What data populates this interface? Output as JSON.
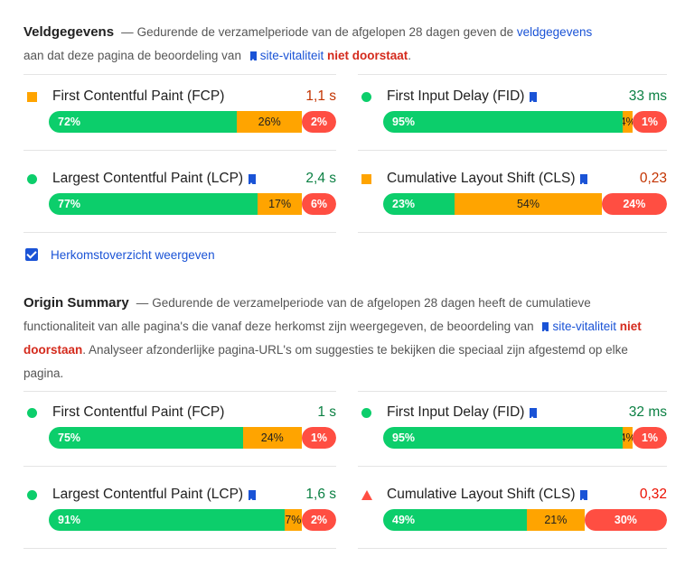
{
  "field": {
    "heading": "Veldgegevens",
    "dash": "—",
    "text1": "Gedurende de verzamelperiode van de afgelopen 28 dagen geven de ",
    "link1": "veldgegevens",
    "text2": "aan dat deze pagina de beoordeling van ",
    "link2": "site-vitaliteit",
    "fail": "niet doorstaat",
    "end": ".",
    "metrics": [
      {
        "label": "First Contentful Paint (FCP)",
        "bookmark": false,
        "value": "1,1 s",
        "status": "orange",
        "good": 72,
        "avg": 26,
        "poor": 2,
        "good_label": "72%",
        "avg_label": "26%",
        "poor_label": "2%"
      },
      {
        "label": "First Input Delay (FID)",
        "bookmark": true,
        "value": "33 ms",
        "status": "green",
        "good": 95,
        "avg": 4,
        "poor": 1,
        "good_label": "95%",
        "avg_label": "4%",
        "poor_label": "1%"
      },
      {
        "label": "Largest Contentful Paint (LCP)",
        "bookmark": true,
        "value": "2,4 s",
        "status": "green",
        "good": 77,
        "avg": 17,
        "poor": 6,
        "good_label": "77%",
        "avg_label": "17%",
        "poor_label": "6%"
      },
      {
        "label": "Cumulative Layout Shift (CLS)",
        "bookmark": true,
        "value": "0,23",
        "status": "orange",
        "good": 23,
        "avg": 54,
        "poor": 24,
        "good_label": "23%",
        "avg_label": "54%",
        "poor_label": "24%"
      }
    ]
  },
  "origin_toggle": {
    "label": "Herkomstoverzicht weergeven",
    "checked": true
  },
  "origin": {
    "heading": "Origin Summary",
    "dash": "—",
    "text1": "Gedurende de verzamelperiode van de afgelopen 28 dagen heeft de cumulatieve functionaliteit van alle pagina's die vanaf deze herkomst zijn weergegeven, de beoordeling van ",
    "link": "site-vitaliteit",
    "fail": "niet doorstaan",
    "text2": ". Analyseer afzonderlijke pagina-URL's om suggesties te bekijken die speciaal zijn afgestemd op elke pagina.",
    "metrics": [
      {
        "label": "First Contentful Paint (FCP)",
        "bookmark": false,
        "value": "1 s",
        "status": "green",
        "good": 75,
        "avg": 24,
        "poor": 1,
        "good_label": "75%",
        "avg_label": "24%",
        "poor_label": "1%"
      },
      {
        "label": "First Input Delay (FID)",
        "bookmark": true,
        "value": "32 ms",
        "status": "green",
        "good": 95,
        "avg": 4,
        "poor": 1,
        "good_label": "95%",
        "avg_label": "4%",
        "poor_label": "1%"
      },
      {
        "label": "Largest Contentful Paint (LCP)",
        "bookmark": true,
        "value": "1,6 s",
        "status": "green",
        "good": 91,
        "avg": 7,
        "poor": 2,
        "good_label": "91%",
        "avg_label": "7%",
        "poor_label": "2%"
      },
      {
        "label": "Cumulative Layout Shift (CLS)",
        "bookmark": true,
        "value": "0,32",
        "status": "red",
        "good": 49,
        "avg": 21,
        "poor": 30,
        "good_label": "49%",
        "avg_label": "21%",
        "poor_label": "30%"
      }
    ]
  },
  "colors": {
    "good": "#0cce6b",
    "average": "#ffa400",
    "poor": "#ff4e42",
    "link": "#1a53d6",
    "fail": "#d42a1c"
  }
}
